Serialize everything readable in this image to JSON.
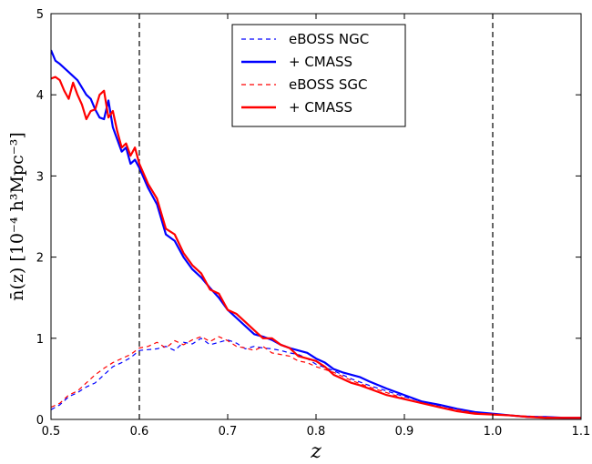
{
  "chart_data": {
    "type": "line",
    "xlabel": "z",
    "ylabel": "n̄(z) [10⁻⁴ h³Mpc⁻³]",
    "xlim": [
      0.5,
      1.1
    ],
    "ylim": [
      0,
      5
    ],
    "xticks": [
      "0.5",
      "0.6",
      "0.7",
      "0.8",
      "0.9",
      "1.0",
      "1.1"
    ],
    "yticks": [
      "0",
      "1",
      "2",
      "3",
      "4",
      "5"
    ],
    "vlines": [
      0.6,
      1.0
    ],
    "legend_position": "top-center",
    "series": [
      {
        "name": "eBOSS NGC",
        "color": "#0000ff",
        "style": "dashed",
        "x": [
          0.5,
          0.51,
          0.52,
          0.53,
          0.54,
          0.55,
          0.56,
          0.57,
          0.58,
          0.59,
          0.6,
          0.61,
          0.62,
          0.63,
          0.64,
          0.65,
          0.66,
          0.67,
          0.68,
          0.69,
          0.7,
          0.71,
          0.72,
          0.73,
          0.74,
          0.75,
          0.76,
          0.77,
          0.78,
          0.79,
          0.8,
          0.82,
          0.84,
          0.86,
          0.88,
          0.9,
          0.92,
          0.94,
          0.96,
          0.98,
          1.0,
          1.02,
          1.04,
          1.06,
          1.08,
          1.1
        ],
        "y": [
          0.12,
          0.18,
          0.28,
          0.33,
          0.4,
          0.45,
          0.55,
          0.65,
          0.7,
          0.76,
          0.85,
          0.86,
          0.87,
          0.9,
          0.85,
          0.95,
          0.93,
          1.0,
          0.92,
          0.95,
          0.98,
          0.94,
          0.87,
          0.9,
          0.88,
          0.87,
          0.85,
          0.82,
          0.8,
          0.75,
          0.68,
          0.6,
          0.5,
          0.42,
          0.35,
          0.28,
          0.22,
          0.17,
          0.13,
          0.09,
          0.07,
          0.05,
          0.04,
          0.03,
          0.02,
          0.02
        ]
      },
      {
        "name": "+ CMASS",
        "color": "#0000ff",
        "style": "solid",
        "x": [
          0.5,
          0.505,
          0.51,
          0.52,
          0.53,
          0.54,
          0.545,
          0.55,
          0.555,
          0.56,
          0.565,
          0.57,
          0.575,
          0.58,
          0.585,
          0.59,
          0.595,
          0.6,
          0.61,
          0.62,
          0.63,
          0.64,
          0.65,
          0.66,
          0.67,
          0.68,
          0.69,
          0.7,
          0.71,
          0.72,
          0.73,
          0.74,
          0.75,
          0.76,
          0.77,
          0.78,
          0.79,
          0.8,
          0.81,
          0.82,
          0.83,
          0.84,
          0.85,
          0.86,
          0.88,
          0.9,
          0.92,
          0.94,
          0.96,
          0.98,
          1.0,
          1.02,
          1.04,
          1.06,
          1.08,
          1.1
        ],
        "y": [
          4.55,
          4.42,
          4.38,
          4.28,
          4.18,
          4.0,
          3.95,
          3.82,
          3.72,
          3.7,
          3.93,
          3.6,
          3.45,
          3.3,
          3.35,
          3.15,
          3.2,
          3.1,
          2.85,
          2.65,
          2.28,
          2.2,
          2.0,
          1.85,
          1.75,
          1.62,
          1.5,
          1.35,
          1.25,
          1.15,
          1.05,
          1.02,
          0.98,
          0.92,
          0.88,
          0.85,
          0.82,
          0.75,
          0.7,
          0.62,
          0.58,
          0.55,
          0.52,
          0.47,
          0.38,
          0.3,
          0.22,
          0.18,
          0.13,
          0.09,
          0.07,
          0.05,
          0.03,
          0.03,
          0.02,
          0.02
        ]
      },
      {
        "name": "eBOSS SGC",
        "color": "#ff0000",
        "style": "dashed",
        "x": [
          0.5,
          0.51,
          0.52,
          0.53,
          0.54,
          0.55,
          0.56,
          0.57,
          0.58,
          0.59,
          0.6,
          0.61,
          0.62,
          0.63,
          0.64,
          0.65,
          0.66,
          0.67,
          0.68,
          0.69,
          0.7,
          0.71,
          0.72,
          0.73,
          0.74,
          0.75,
          0.76,
          0.77,
          0.78,
          0.79,
          0.8,
          0.82,
          0.84,
          0.86,
          0.88,
          0.9,
          0.92,
          0.94,
          0.96,
          0.98,
          1.0,
          1.02,
          1.04,
          1.06,
          1.08,
          1.1
        ],
        "y": [
          0.15,
          0.2,
          0.3,
          0.35,
          0.45,
          0.55,
          0.63,
          0.7,
          0.75,
          0.8,
          0.88,
          0.9,
          0.95,
          0.88,
          0.97,
          0.92,
          0.98,
          1.02,
          0.96,
          1.02,
          0.97,
          0.9,
          0.88,
          0.85,
          0.9,
          0.82,
          0.8,
          0.78,
          0.72,
          0.7,
          0.65,
          0.58,
          0.48,
          0.4,
          0.33,
          0.26,
          0.2,
          0.15,
          0.12,
          0.08,
          0.06,
          0.05,
          0.04,
          0.03,
          0.02,
          0.02
        ]
      },
      {
        "name": "+ CMASS",
        "color": "#ff0000",
        "style": "solid",
        "x": [
          0.5,
          0.505,
          0.51,
          0.515,
          0.52,
          0.525,
          0.53,
          0.535,
          0.54,
          0.545,
          0.55,
          0.555,
          0.56,
          0.565,
          0.57,
          0.575,
          0.58,
          0.585,
          0.59,
          0.595,
          0.6,
          0.61,
          0.62,
          0.63,
          0.64,
          0.65,
          0.66,
          0.67,
          0.68,
          0.69,
          0.7,
          0.71,
          0.72,
          0.73,
          0.74,
          0.75,
          0.76,
          0.77,
          0.78,
          0.79,
          0.8,
          0.81,
          0.82,
          0.83,
          0.84,
          0.85,
          0.86,
          0.88,
          0.9,
          0.92,
          0.94,
          0.96,
          0.98,
          1.0,
          1.02,
          1.04,
          1.06,
          1.08,
          1.1
        ],
        "y": [
          4.2,
          4.22,
          4.18,
          4.05,
          3.95,
          4.15,
          4.0,
          3.88,
          3.7,
          3.8,
          3.82,
          4.0,
          4.05,
          3.72,
          3.8,
          3.55,
          3.35,
          3.4,
          3.25,
          3.35,
          3.15,
          2.9,
          2.72,
          2.35,
          2.28,
          2.05,
          1.9,
          1.8,
          1.6,
          1.55,
          1.35,
          1.3,
          1.2,
          1.1,
          1.0,
          1.0,
          0.92,
          0.88,
          0.78,
          0.75,
          0.72,
          0.65,
          0.55,
          0.5,
          0.45,
          0.42,
          0.38,
          0.3,
          0.25,
          0.2,
          0.15,
          0.1,
          0.07,
          0.06,
          0.05,
          0.03,
          0.02,
          0.02,
          0.02
        ]
      }
    ]
  }
}
